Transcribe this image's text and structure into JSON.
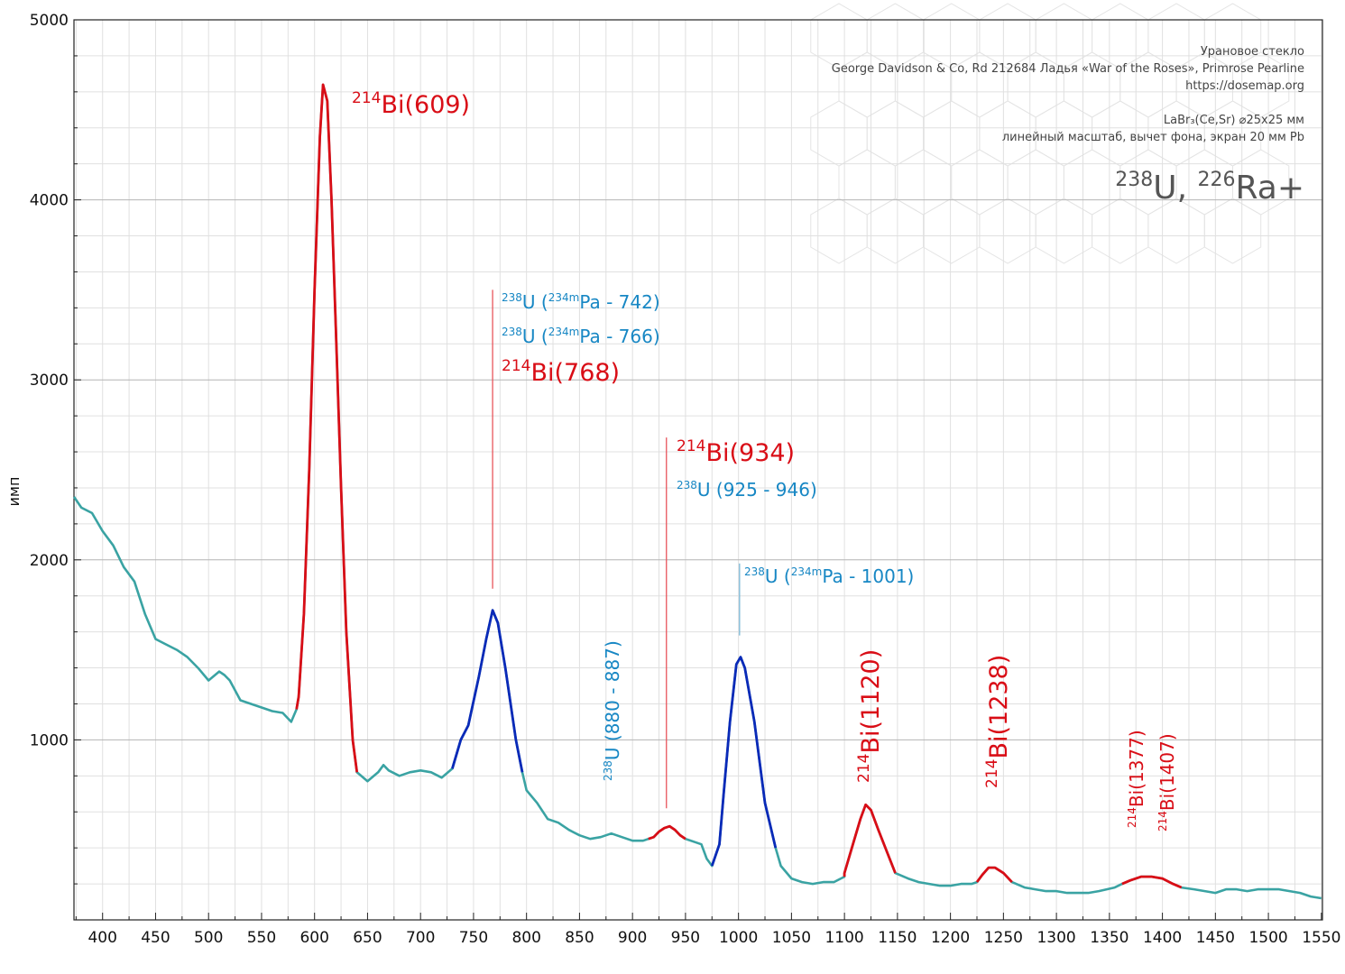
{
  "chart_data": {
    "type": "line",
    "xlabel": "",
    "ylabel": "имп",
    "xlim": [
      373,
      1551
    ],
    "ylim": [
      0,
      5000
    ],
    "x_ticks": [
      400,
      450,
      500,
      550,
      600,
      650,
      700,
      750,
      800,
      850,
      900,
      950,
      1000,
      1050,
      1100,
      1150,
      1200,
      1250,
      1300,
      1350,
      1400,
      1450,
      1500,
      1550
    ],
    "y_ticks": [
      1000,
      2000,
      3000,
      4000,
      5000
    ],
    "grid": true,
    "colors": {
      "background": "#ffffff",
      "teal": "#3aa3a3",
      "red": "#d90d16",
      "blue": "#0a2ab8",
      "label_blue": "#1787c4"
    },
    "info": {
      "line1": "Урановое стекло",
      "line2": "George Davidson & Co, Rd 212684 Ладья «War of the Roses», Primrose Pearline",
      "line3": "https://dosemap.org",
      "line4": "LaBr₃(Ce,Sr) ⌀25x25 мм",
      "line5": "линейный масштаб, вычет фона, экран 20 мм Pb",
      "big_sup1": "238",
      "big_main1": "U, ",
      "big_sup2": "226",
      "big_main2": "Ra+"
    },
    "spectrum": [
      [
        373,
        2350
      ],
      [
        380,
        2290
      ],
      [
        390,
        2260
      ],
      [
        400,
        2160
      ],
      [
        410,
        2080
      ],
      [
        420,
        1960
      ],
      [
        430,
        1880
      ],
      [
        440,
        1700
      ],
      [
        450,
        1560
      ],
      [
        460,
        1530
      ],
      [
        470,
        1500
      ],
      [
        480,
        1460
      ],
      [
        490,
        1400
      ],
      [
        500,
        1330
      ],
      [
        510,
        1380
      ],
      [
        515,
        1360
      ],
      [
        520,
        1330
      ],
      [
        530,
        1220
      ],
      [
        540,
        1200
      ],
      [
        550,
        1180
      ],
      [
        560,
        1160
      ],
      [
        570,
        1150
      ],
      [
        578,
        1100
      ],
      [
        583,
        1170
      ],
      [
        585,
        1240
      ],
      [
        590,
        1700
      ],
      [
        595,
        2500
      ],
      [
        600,
        3500
      ],
      [
        605,
        4350
      ],
      [
        608,
        4640
      ],
      [
        612,
        4550
      ],
      [
        616,
        4000
      ],
      [
        620,
        3300
      ],
      [
        625,
        2400
      ],
      [
        630,
        1600
      ],
      [
        636,
        1000
      ],
      [
        640,
        820
      ],
      [
        650,
        770
      ],
      [
        660,
        820
      ],
      [
        665,
        860
      ],
      [
        670,
        830
      ],
      [
        680,
        800
      ],
      [
        690,
        820
      ],
      [
        700,
        830
      ],
      [
        710,
        820
      ],
      [
        720,
        790
      ],
      [
        730,
        840
      ],
      [
        738,
        1000
      ],
      [
        745,
        1080
      ],
      [
        755,
        1350
      ],
      [
        762,
        1560
      ],
      [
        768,
        1720
      ],
      [
        773,
        1650
      ],
      [
        780,
        1400
      ],
      [
        790,
        1000
      ],
      [
        796,
        820
      ],
      [
        800,
        720
      ],
      [
        810,
        650
      ],
      [
        820,
        560
      ],
      [
        830,
        540
      ],
      [
        840,
        500
      ],
      [
        850,
        470
      ],
      [
        860,
        450
      ],
      [
        870,
        460
      ],
      [
        880,
        480
      ],
      [
        890,
        460
      ],
      [
        900,
        440
      ],
      [
        910,
        440
      ],
      [
        915,
        450
      ],
      [
        920,
        460
      ],
      [
        925,
        490
      ],
      [
        930,
        510
      ],
      [
        935,
        520
      ],
      [
        940,
        500
      ],
      [
        945,
        470
      ],
      [
        950,
        450
      ],
      [
        960,
        430
      ],
      [
        965,
        420
      ],
      [
        970,
        340
      ],
      [
        975,
        300
      ],
      [
        982,
        420
      ],
      [
        986,
        700
      ],
      [
        992,
        1100
      ],
      [
        998,
        1420
      ],
      [
        1002,
        1460
      ],
      [
        1006,
        1400
      ],
      [
        1015,
        1100
      ],
      [
        1025,
        650
      ],
      [
        1035,
        400
      ],
      [
        1040,
        300
      ],
      [
        1050,
        230
      ],
      [
        1060,
        210
      ],
      [
        1070,
        200
      ],
      [
        1080,
        210
      ],
      [
        1090,
        210
      ],
      [
        1100,
        240
      ],
      [
        1100,
        260
      ],
      [
        1108,
        420
      ],
      [
        1115,
        560
      ],
      [
        1120,
        640
      ],
      [
        1125,
        610
      ],
      [
        1132,
        500
      ],
      [
        1140,
        380
      ],
      [
        1148,
        260
      ],
      [
        1160,
        230
      ],
      [
        1170,
        210
      ],
      [
        1180,
        200
      ],
      [
        1190,
        190
      ],
      [
        1200,
        190
      ],
      [
        1210,
        200
      ],
      [
        1220,
        200
      ],
      [
        1225,
        210
      ],
      [
        1230,
        250
      ],
      [
        1236,
        290
      ],
      [
        1242,
        290
      ],
      [
        1250,
        260
      ],
      [
        1258,
        210
      ],
      [
        1270,
        180
      ],
      [
        1280,
        170
      ],
      [
        1290,
        160
      ],
      [
        1300,
        160
      ],
      [
        1310,
        150
      ],
      [
        1320,
        150
      ],
      [
        1330,
        150
      ],
      [
        1340,
        160
      ],
      [
        1355,
        180
      ],
      [
        1362,
        200
      ],
      [
        1370,
        220
      ],
      [
        1380,
        240
      ],
      [
        1390,
        240
      ],
      [
        1400,
        230
      ],
      [
        1410,
        200
      ],
      [
        1418,
        180
      ],
      [
        1430,
        170
      ],
      [
        1440,
        160
      ],
      [
        1450,
        150
      ],
      [
        1460,
        170
      ],
      [
        1470,
        170
      ],
      [
        1480,
        160
      ],
      [
        1490,
        170
      ],
      [
        1500,
        170
      ],
      [
        1510,
        170
      ],
      [
        1520,
        160
      ],
      [
        1530,
        150
      ],
      [
        1540,
        130
      ],
      [
        1550,
        120
      ]
    ],
    "highlight_segments": [
      {
        "from": 583,
        "to": 640,
        "color": "red"
      },
      {
        "from": 730,
        "to": 796,
        "color": "blue"
      },
      {
        "from": 915,
        "to": 950,
        "color": "red"
      },
      {
        "from": 975,
        "to": 1035,
        "color": "blue"
      },
      {
        "from": 1100,
        "to": 1148,
        "color": "red"
      },
      {
        "from": 1225,
        "to": 1258,
        "color": "red"
      },
      {
        "from": 1362,
        "to": 1418,
        "color": "red"
      }
    ],
    "marker_lines": [
      {
        "x": 768,
        "y_from": 1840,
        "y_to": 3500,
        "color": "red"
      },
      {
        "x": 932,
        "y_from": 620,
        "y_to": 2680,
        "color": "red"
      },
      {
        "x": 1001,
        "y_from": 1580,
        "y_to": 1980,
        "color": "blue"
      }
    ],
    "annotations": [
      {
        "sup": "214",
        "text": "Bi(609)",
        "x": 390,
        "y": 125,
        "size": 27,
        "color": "red",
        "rotate": false
      },
      {
        "pre": "238",
        "mid": "U (",
        "sup": "234m",
        "text": "Pa - 742)",
        "x": 556,
        "y": 342,
        "size": 20,
        "color": "blue",
        "rotate": false
      },
      {
        "pre": "238",
        "mid": "U (",
        "sup": "234m",
        "text": "Pa - 766)",
        "x": 556,
        "y": 380,
        "size": 20,
        "color": "blue",
        "rotate": false
      },
      {
        "sup": "214",
        "text": "Bi(768)",
        "x": 556,
        "y": 422,
        "size": 27,
        "color": "red",
        "rotate": false
      },
      {
        "sup": "214",
        "text": "Bi(934)",
        "x": 750,
        "y": 511,
        "size": 27,
        "color": "red",
        "rotate": false
      },
      {
        "sup": "238",
        "text": "U (925 - 946)",
        "x": 750,
        "y": 550,
        "size": 20,
        "color": "blue",
        "rotate": false
      },
      {
        "pre": "238",
        "mid": "U (",
        "sup": "234m",
        "text": "Pa - 1001)",
        "x": 825,
        "y": 646,
        "size": 20,
        "color": "blue",
        "rotate": false
      },
      {
        "sup": "238",
        "text": "U (880 - 887)",
        "x": 686,
        "y": 866,
        "size": 20,
        "color": "blue",
        "rotate": true
      },
      {
        "sup": "214",
        "text": "Bi(1120)",
        "x": 974,
        "y": 868,
        "size": 27,
        "color": "red",
        "rotate": true
      },
      {
        "sup": "214",
        "text": "Bi(1238)",
        "x": 1116,
        "y": 874,
        "size": 27,
        "color": "red",
        "rotate": true
      },
      {
        "sup": "214",
        "text": "Bi(1377)",
        "x": 1267,
        "y": 918,
        "size": 20,
        "color": "red",
        "rotate": true
      },
      {
        "sup": "214",
        "text": "Bi(1407)",
        "x": 1301,
        "y": 922,
        "size": 20,
        "color": "red",
        "rotate": true
      }
    ]
  }
}
